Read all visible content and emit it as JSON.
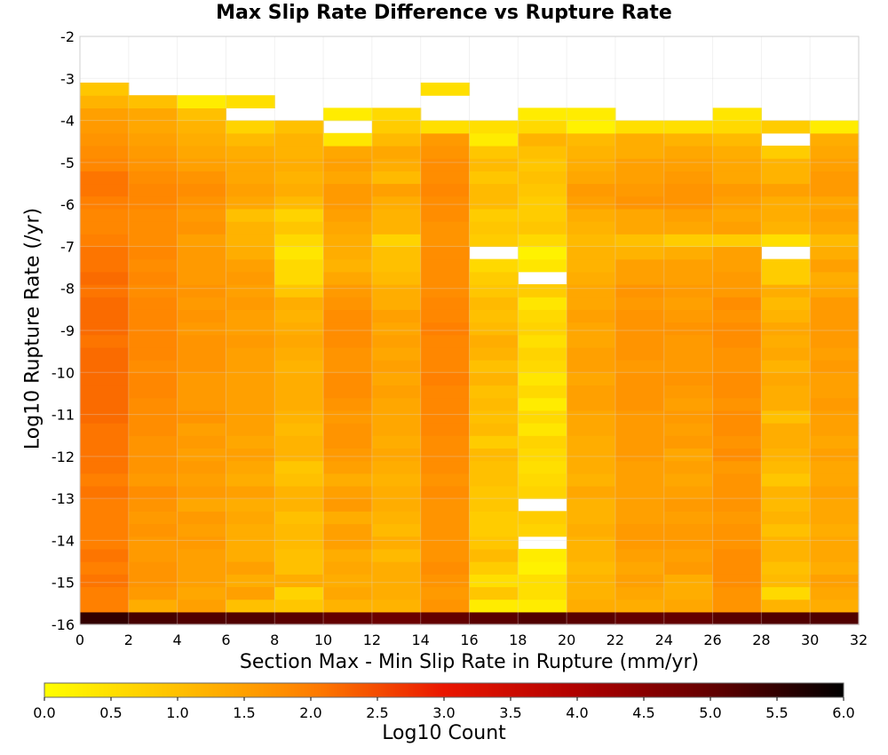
{
  "chart_data": {
    "type": "heatmap",
    "title": "Max Slip Rate Difference vs Rupture Rate",
    "xlabel": "Section Max - Min Slip Rate in Rupture (mm/yr)",
    "ylabel": "Log10 Rupture Rate (/yr)",
    "colorbar_label": "Log10 Count",
    "xlim": [
      0,
      32
    ],
    "ylim": [
      -16,
      -2
    ],
    "x_ticks": [
      "0",
      "2",
      "4",
      "6",
      "8",
      "10",
      "12",
      "14",
      "16",
      "18",
      "20",
      "22",
      "24",
      "26",
      "28",
      "30",
      "32"
    ],
    "y_ticks": [
      "-2",
      "-3",
      "-4",
      "-5",
      "-6",
      "-7",
      "-8",
      "-9",
      "-10",
      "-11",
      "-12",
      "-13",
      "-14",
      "-15",
      "-16"
    ],
    "colorbar_ticks": [
      "0.0",
      "0.5",
      "1.0",
      "1.5",
      "2.0",
      "2.5",
      "3.0",
      "3.5",
      "4.0",
      "4.5",
      "5.0",
      "5.5",
      "6.0"
    ],
    "clim": [
      0,
      6
    ],
    "x_bins": [
      1,
      3,
      5,
      7,
      9,
      11,
      13,
      15,
      17,
      19,
      21,
      23,
      25,
      27,
      29,
      31
    ],
    "y_bins": [
      -15.85,
      -15.55,
      -15.25,
      -14.95,
      -14.65,
      -14.35,
      -14.05,
      -13.75,
      -13.45,
      -13.15,
      -12.85,
      -12.55,
      -12.25,
      -11.95,
      -11.65,
      -11.35,
      -11.05,
      -10.75,
      -10.45,
      -10.15,
      -9.85,
      -9.55,
      -9.25,
      -8.95,
      -8.65,
      -8.35,
      -8.05,
      -7.75,
      -7.45,
      -7.15,
      -6.85,
      -6.55,
      -6.25,
      -5.95,
      -5.65,
      -5.35,
      -5.05,
      -4.75,
      -4.45,
      -4.15,
      -3.85,
      -3.55,
      -3.25
    ],
    "row_order": "bottom-to-top",
    "values": [
      [
        5.5,
        5.3,
        5.2,
        5.2,
        5.1,
        5.0,
        4.9,
        5.0,
        5.1,
        5.2,
        5.1,
        5.0,
        5.0,
        5.1,
        5.2,
        5.2
      ],
      [
        2.0,
        1.3,
        1.5,
        1.0,
        0.9,
        1.2,
        1.2,
        1.7,
        0.3,
        0.3,
        1.3,
        1.3,
        1.4,
        1.7,
        1.2,
        1.3
      ],
      [
        2.0,
        1.6,
        1.4,
        1.5,
        0.7,
        1.4,
        1.3,
        1.6,
        0.9,
        0.5,
        1.2,
        1.4,
        1.3,
        1.7,
        0.6,
        1.4
      ],
      [
        2.1,
        1.7,
        1.5,
        1.3,
        1.3,
        1.3,
        1.3,
        1.7,
        0.5,
        0.5,
        1.2,
        1.5,
        1.3,
        1.8,
        1.1,
        1.5
      ],
      [
        2.0,
        1.7,
        1.5,
        1.5,
        1.0,
        1.4,
        1.3,
        1.8,
        0.8,
        0.2,
        1.1,
        1.4,
        1.6,
        1.8,
        1.0,
        1.3
      ],
      [
        2.1,
        1.6,
        1.5,
        1.3,
        1.0,
        1.3,
        1.1,
        1.7,
        1.1,
        0.3,
        1.2,
        1.5,
        1.5,
        1.8,
        1.2,
        1.4
      ],
      [
        2.0,
        1.6,
        1.6,
        1.3,
        1.1,
        1.5,
        1.3,
        1.7,
        0.9,
        null,
        1.2,
        1.6,
        1.6,
        1.7,
        1.2,
        1.4
      ],
      [
        2.0,
        1.7,
        1.5,
        1.3,
        1.1,
        1.5,
        1.1,
        1.7,
        0.8,
        0.7,
        1.3,
        1.6,
        1.6,
        1.7,
        1.0,
        1.3
      ],
      [
        2.0,
        1.6,
        1.6,
        1.4,
        1.0,
        1.3,
        1.2,
        1.7,
        0.8,
        0.8,
        1.2,
        1.5,
        1.5,
        1.6,
        1.2,
        1.4
      ],
      [
        2.0,
        1.7,
        1.4,
        1.3,
        1.2,
        1.6,
        1.3,
        1.7,
        0.9,
        null,
        1.2,
        1.5,
        1.6,
        1.7,
        1.1,
        1.4
      ],
      [
        2.1,
        1.8,
        1.6,
        1.5,
        1.2,
        1.5,
        1.3,
        1.8,
        0.9,
        0.7,
        1.4,
        1.5,
        1.5,
        1.7,
        1.2,
        1.5
      ],
      [
        2.0,
        1.6,
        1.5,
        1.3,
        1.0,
        1.3,
        1.2,
        1.7,
        1.0,
        0.6,
        1.2,
        1.5,
        1.4,
        1.7,
        0.9,
        1.4
      ],
      [
        2.1,
        1.7,
        1.6,
        1.4,
        0.9,
        1.5,
        1.3,
        1.8,
        1.0,
        0.5,
        1.3,
        1.5,
        1.5,
        1.6,
        1.1,
        1.4
      ],
      [
        2.1,
        1.7,
        1.5,
        1.5,
        1.2,
        1.6,
        1.4,
        1.8,
        1.1,
        0.6,
        1.3,
        1.6,
        1.4,
        1.8,
        1.2,
        1.5
      ],
      [
        2.1,
        1.7,
        1.6,
        1.4,
        1.2,
        1.7,
        1.3,
        1.8,
        0.8,
        0.7,
        1.3,
        1.6,
        1.6,
        1.7,
        1.3,
        1.4
      ],
      [
        2.1,
        1.8,
        1.5,
        1.5,
        1.1,
        1.7,
        1.4,
        1.9,
        1.1,
        0.4,
        1.4,
        1.6,
        1.5,
        1.8,
        1.3,
        1.5
      ],
      [
        2.2,
        1.8,
        1.7,
        1.5,
        1.2,
        1.6,
        1.4,
        1.9,
        1.0,
        0.6,
        1.4,
        1.6,
        1.6,
        1.8,
        1.0,
        1.5
      ],
      [
        2.2,
        1.8,
        1.6,
        1.5,
        1.3,
        1.7,
        1.4,
        1.9,
        1.1,
        0.3,
        1.5,
        1.7,
        1.5,
        1.7,
        1.3,
        1.6
      ],
      [
        2.2,
        1.9,
        1.6,
        1.5,
        1.3,
        1.8,
        1.5,
        1.9,
        1.0,
        0.6,
        1.5,
        1.7,
        1.6,
        1.8,
        1.3,
        1.5
      ],
      [
        2.2,
        1.9,
        1.6,
        1.5,
        1.3,
        1.8,
        1.4,
        2.0,
        1.2,
        0.4,
        1.4,
        1.7,
        1.7,
        1.8,
        1.4,
        1.5
      ],
      [
        2.2,
        1.8,
        1.7,
        1.5,
        1.2,
        1.7,
        1.5,
        1.9,
        1.0,
        0.6,
        1.5,
        1.6,
        1.6,
        1.7,
        1.2,
        1.6
      ],
      [
        2.2,
        1.9,
        1.7,
        1.5,
        1.3,
        1.7,
        1.4,
        1.9,
        1.2,
        0.7,
        1.5,
        1.7,
        1.6,
        1.7,
        1.4,
        1.5
      ],
      [
        2.1,
        1.9,
        1.7,
        1.6,
        1.4,
        1.8,
        1.5,
        1.9,
        1.3,
        0.5,
        1.4,
        1.7,
        1.6,
        1.8,
        1.3,
        1.6
      ],
      [
        2.2,
        1.9,
        1.6,
        1.5,
        1.3,
        1.8,
        1.4,
        2.0,
        1.1,
        0.7,
        1.4,
        1.7,
        1.7,
        1.8,
        1.4,
        1.6
      ],
      [
        2.2,
        1.9,
        1.7,
        1.5,
        1.2,
        1.8,
        1.5,
        1.9,
        1.0,
        0.6,
        1.5,
        1.7,
        1.6,
        1.7,
        1.2,
        1.6
      ],
      [
        2.2,
        1.9,
        1.6,
        1.6,
        1.3,
        1.7,
        1.3,
        1.9,
        1.1,
        0.4,
        1.4,
        1.6,
        1.5,
        1.8,
        1.1,
        1.6
      ],
      [
        2.1,
        1.8,
        1.7,
        1.5,
        0.9,
        1.6,
        1.3,
        1.8,
        0.9,
        0.8,
        1.4,
        1.7,
        1.6,
        1.6,
        1.3,
        1.4
      ],
      [
        2.2,
        1.9,
        1.6,
        1.6,
        0.6,
        1.4,
        1.1,
        1.8,
        0.8,
        null,
        1.3,
        1.5,
        1.5,
        1.6,
        0.8,
        1.3
      ],
      [
        2.1,
        1.8,
        1.6,
        1.5,
        0.6,
        1.2,
        1.0,
        1.8,
        0.6,
        0.4,
        1.2,
        1.5,
        1.5,
        1.5,
        0.8,
        1.5
      ],
      [
        2.1,
        1.9,
        1.6,
        1.3,
        0.4,
        1.3,
        1.0,
        1.8,
        null,
        0.2,
        1.2,
        1.2,
        1.3,
        1.5,
        null,
        1.3
      ],
      [
        2.0,
        1.8,
        1.5,
        1.2,
        0.6,
        1.3,
        0.7,
        1.7,
        0.8,
        0.6,
        1.1,
        1.0,
        0.8,
        0.8,
        0.5,
        1.1
      ],
      [
        1.9,
        1.8,
        1.7,
        1.2,
        0.9,
        1.4,
        1.2,
        1.7,
        0.9,
        0.9,
        1.2,
        1.4,
        1.4,
        1.5,
        1.2,
        1.4
      ],
      [
        1.9,
        1.8,
        1.6,
        1.0,
        0.7,
        1.5,
        1.2,
        1.8,
        0.8,
        0.8,
        1.3,
        1.4,
        1.5,
        1.4,
        1.3,
        1.5
      ],
      [
        2.0,
        1.9,
        1.7,
        1.4,
        1.1,
        1.6,
        1.3,
        1.8,
        1.1,
        0.8,
        1.5,
        1.7,
        1.7,
        1.5,
        1.3,
        1.4
      ],
      [
        2.1,
        1.9,
        1.8,
        1.5,
        1.3,
        1.6,
        1.5,
        1.9,
        1.1,
        0.9,
        1.6,
        1.6,
        1.7,
        1.6,
        1.5,
        1.6
      ],
      [
        2.1,
        1.8,
        1.7,
        1.4,
        1.2,
        1.4,
        1.1,
        1.8,
        0.9,
        1.0,
        1.4,
        1.5,
        1.6,
        1.4,
        1.2,
        1.6
      ],
      [
        1.9,
        1.7,
        1.5,
        1.4,
        1.3,
        1.5,
        1.3,
        1.8,
        1.1,
        0.9,
        1.3,
        1.5,
        1.5,
        1.4,
        1.2,
        1.5
      ],
      [
        1.8,
        1.6,
        1.4,
        1.3,
        1.2,
        1.4,
        1.4,
        1.7,
        0.9,
        1.0,
        1.2,
        1.3,
        1.4,
        1.3,
        0.8,
        1.4
      ],
      [
        1.7,
        1.5,
        1.3,
        1.1,
        1.2,
        0.4,
        1.1,
        1.6,
        0.3,
        1.2,
        1.1,
        1.3,
        1.2,
        1.1,
        null,
        1.3
      ],
      [
        1.6,
        1.4,
        1.2,
        0.7,
        1.0,
        null,
        0.8,
        0.5,
        0.5,
        0.6,
        0.2,
        0.5,
        0.5,
        0.6,
        0.8,
        0.3
      ],
      [
        1.5,
        1.4,
        1.0,
        null,
        null,
        0.3,
        0.6,
        null,
        null,
        0.3,
        0.3,
        null,
        null,
        0.4,
        null,
        null
      ],
      [
        1.2,
        1.0,
        0.3,
        0.5,
        null,
        null,
        null,
        null,
        null,
        null,
        null,
        null,
        null,
        null,
        null,
        null
      ],
      [
        0.9,
        null,
        null,
        null,
        null,
        null,
        null,
        0.5,
        null,
        null,
        null,
        null,
        null,
        null,
        null,
        null
      ]
    ]
  }
}
